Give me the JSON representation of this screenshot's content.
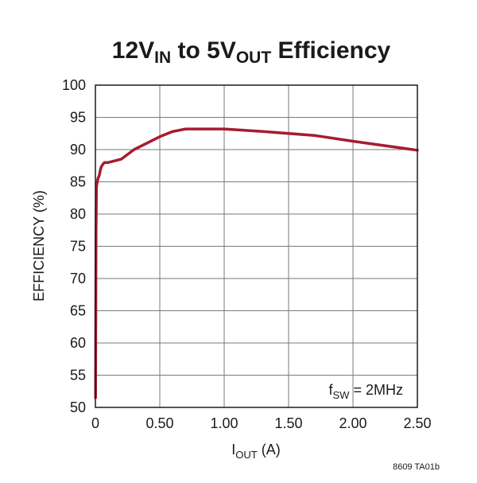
{
  "chart_data": {
    "type": "line",
    "title": {
      "parts": [
        {
          "text": "12V",
          "sub": false
        },
        {
          "text": "IN",
          "sub": true
        },
        {
          "text": " to 5V",
          "sub": false
        },
        {
          "text": "OUT",
          "sub": true
        },
        {
          "text": " Efficiency",
          "sub": false
        }
      ]
    },
    "xlabel": {
      "parts": [
        {
          "text": "I",
          "sub": false
        },
        {
          "text": "OUT",
          "sub": true
        },
        {
          "text": " (A)",
          "sub": false
        }
      ]
    },
    "ylabel": "EFFICIENCY (%)",
    "xlim": [
      0,
      2.5
    ],
    "ylim": [
      50,
      100
    ],
    "xticks": [
      {
        "value": 0,
        "label": "0"
      },
      {
        "value": 0.5,
        "label": "0.50"
      },
      {
        "value": 1.0,
        "label": "1.00"
      },
      {
        "value": 1.5,
        "label": "1.50"
      },
      {
        "value": 2.0,
        "label": "2.00"
      },
      {
        "value": 2.5,
        "label": "2.50"
      }
    ],
    "yticks": [
      {
        "value": 50,
        "label": "50"
      },
      {
        "value": 55,
        "label": "55"
      },
      {
        "value": 60,
        "label": "60"
      },
      {
        "value": 65,
        "label": "65"
      },
      {
        "value": 70,
        "label": "70"
      },
      {
        "value": 75,
        "label": "75"
      },
      {
        "value": 80,
        "label": "80"
      },
      {
        "value": 85,
        "label": "85"
      },
      {
        "value": 90,
        "label": "90"
      },
      {
        "value": 95,
        "label": "95"
      },
      {
        "value": 100,
        "label": "100"
      }
    ],
    "grid": true,
    "series": [
      {
        "color": "#a51c30",
        "x": [
          0.001,
          0.003,
          0.005,
          0.008,
          0.01,
          0.015,
          0.02,
          0.03,
          0.04,
          0.05,
          0.07,
          0.1,
          0.2,
          0.3,
          0.5,
          0.6,
          0.7,
          1.0,
          1.3,
          1.7,
          2.0,
          2.5
        ],
        "y": [
          51.5,
          65,
          77,
          84,
          84.5,
          85,
          85.5,
          86,
          87,
          87.5,
          88,
          88,
          88.5,
          90,
          92,
          92.8,
          93.2,
          93.2,
          92.8,
          92.2,
          91.3,
          89.9
        ]
      }
    ],
    "annotation": {
      "parts": [
        {
          "text": "f",
          "sub": false
        },
        {
          "text": "SW",
          "sub": true
        },
        {
          "text": " = 2MHz",
          "sub": false
        }
      ]
    }
  },
  "figure_code": "8609 TA01b"
}
